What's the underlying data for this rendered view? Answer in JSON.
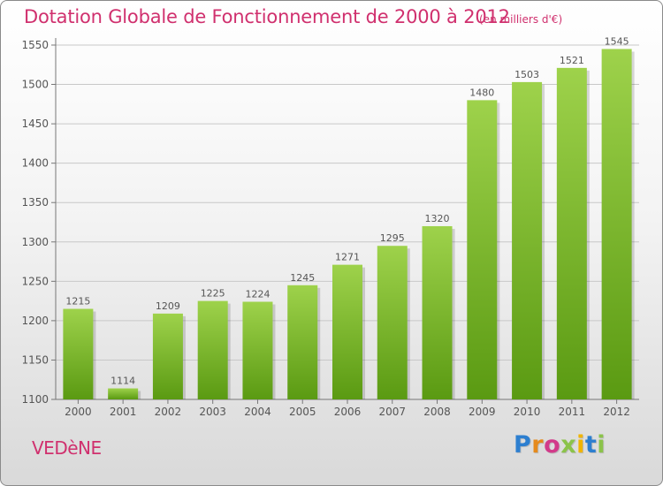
{
  "header": {
    "title": "Dotation Globale de Fonctionnement de 2000 à 2012",
    "subtitle": "(en milliers d'€)"
  },
  "footer": {
    "city": "VEDèNE",
    "brand_letters": [
      {
        "char": "P",
        "color": "#2d7fd0"
      },
      {
        "char": "r",
        "color": "#e58a1c"
      },
      {
        "char": "o",
        "color": "#d23b8a"
      },
      {
        "char": "x",
        "color": "#8bc34a"
      },
      {
        "char": "i",
        "color": "#f0b400"
      },
      {
        "char": "t",
        "color": "#2d7fd0"
      },
      {
        "char": "i",
        "color": "#8bc34a"
      }
    ]
  },
  "chart_data": {
    "type": "bar",
    "title": "Dotation Globale de Fonctionnement de 2000 à 2012",
    "subtitle": "(en milliers d'€)",
    "categories": [
      "2000",
      "2001",
      "2002",
      "2003",
      "2004",
      "2005",
      "2006",
      "2007",
      "2008",
      "2009",
      "2010",
      "2011",
      "2012"
    ],
    "values": [
      1215,
      1114,
      1209,
      1225,
      1224,
      1245,
      1271,
      1295,
      1320,
      1480,
      1503,
      1521,
      1545
    ],
    "ylim": [
      1100,
      1550
    ],
    "yticks": [
      1100,
      1150,
      1200,
      1250,
      1300,
      1350,
      1400,
      1450,
      1500,
      1550
    ],
    "grid": true,
    "bar_color": "#7fbf2a",
    "bar_color_light": "#9ed24b",
    "bar_color_dark": "#5a9a12",
    "label_color": "#555555"
  }
}
